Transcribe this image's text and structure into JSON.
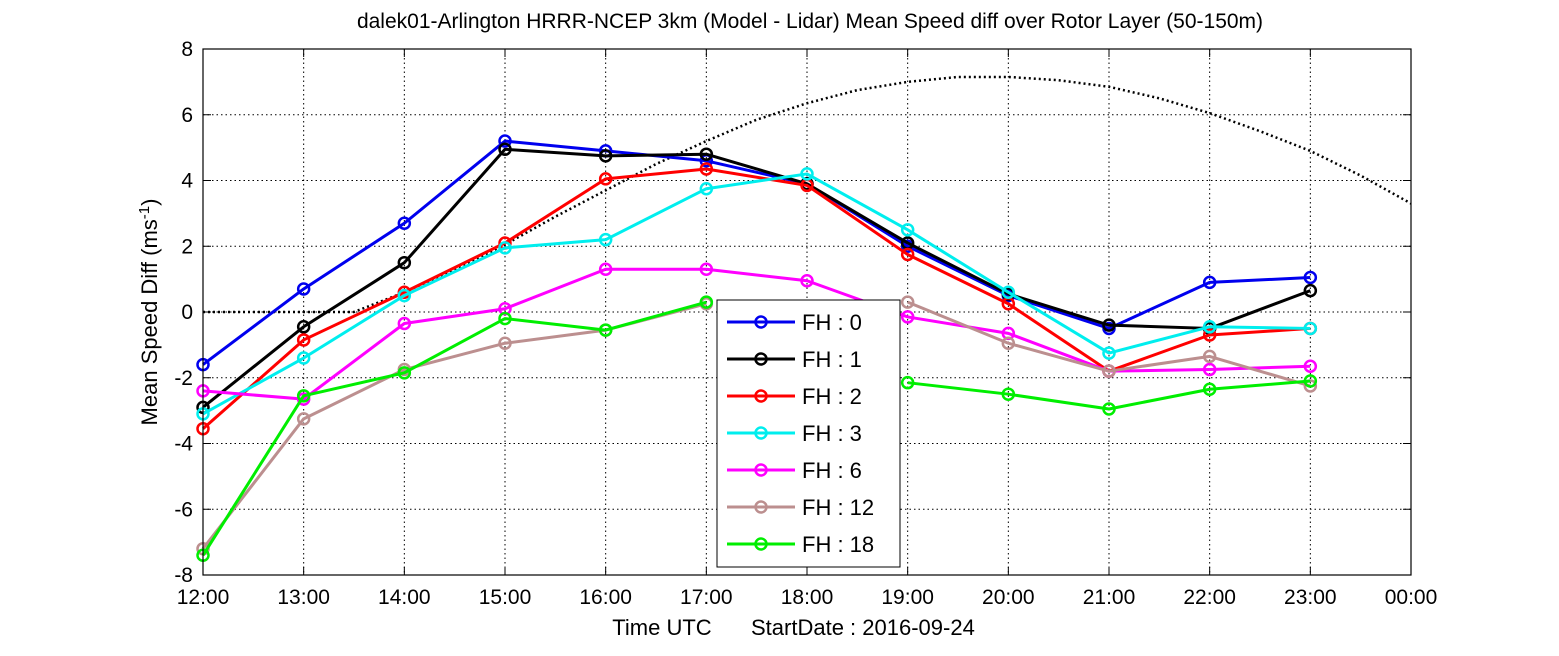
{
  "chart_data": {
    "type": "line",
    "title": "dalek01-Arlington HRRR-NCEP 3km (Model - Lidar) Mean Speed diff over Rotor Layer (50-150m)",
    "xlabel": "Time UTC",
    "start_date_label": "StartDate : 2016-09-24",
    "ylabel": "Mean Speed Diff (ms",
    "ylabel_sup": "-1",
    "ylabel_close": ")",
    "ylim": [
      -8,
      8
    ],
    "xlim": [
      12,
      24
    ],
    "grid": true,
    "legend_placement": "center-bottom",
    "x_ticks": [
      12,
      13,
      14,
      15,
      16,
      17,
      18,
      19,
      20,
      21,
      22,
      23,
      24
    ],
    "x_tick_labels": [
      "12:00",
      "13:00",
      "14:00",
      "15:00",
      "16:00",
      "17:00",
      "18:00",
      "19:00",
      "20:00",
      "21:00",
      "22:00",
      "23:00",
      "00:00"
    ],
    "y_ticks": [
      -8,
      -6,
      -4,
      -2,
      0,
      2,
      4,
      6,
      8
    ],
    "y_tick_labels": [
      "-8",
      "-6",
      "-4",
      "-2",
      "0",
      "2",
      "4",
      "6",
      "8"
    ],
    "x": [
      12,
      13,
      14,
      15,
      16,
      17,
      18,
      19,
      20,
      21,
      22,
      23
    ],
    "series": [
      {
        "name": "FH : 0",
        "color": "#0000ee",
        "values": [
          -1.6,
          0.7,
          2.7,
          5.2,
          4.9,
          4.6,
          3.9,
          2.0,
          0.5,
          -0.5,
          0.9,
          1.05
        ]
      },
      {
        "name": "FH : 1",
        "color": "#000000",
        "values": [
          -2.9,
          -0.45,
          1.5,
          4.95,
          4.75,
          4.8,
          3.9,
          2.1,
          0.55,
          -0.4,
          -0.5,
          0.65
        ]
      },
      {
        "name": "FH : 2",
        "color": "#ff0000",
        "values": [
          -3.55,
          -0.85,
          0.6,
          2.1,
          4.05,
          4.35,
          3.85,
          1.75,
          0.25,
          -1.8,
          -0.7,
          -0.5
        ]
      },
      {
        "name": "FH : 3",
        "color": "#00eeee",
        "values": [
          -3.1,
          -1.4,
          0.5,
          1.95,
          2.2,
          3.75,
          4.2,
          2.5,
          0.6,
          -1.25,
          -0.45,
          -0.5
        ]
      },
      {
        "name": "FH : 6",
        "color": "#ff00ff",
        "values": [
          -2.4,
          -2.65,
          -0.35,
          0.1,
          1.3,
          1.3,
          0.95,
          -0.15,
          -0.65,
          -1.8,
          -1.75,
          -1.65
        ]
      },
      {
        "name": "FH : 12",
        "color": "#bc8f8f",
        "values": [
          -7.2,
          -3.25,
          -1.75,
          -0.95,
          -0.55,
          0.25,
          null,
          0.3,
          -0.95,
          -1.8,
          -1.35,
          -2.25
        ]
      },
      {
        "name": "FH : 18",
        "color": "#00ee00",
        "values": [
          -7.4,
          -2.55,
          -1.85,
          -0.2,
          -0.55,
          0.3,
          null,
          -2.15,
          -2.5,
          -2.95,
          -2.35,
          -2.1
        ]
      }
    ],
    "reference_curve": {
      "style": "dotted",
      "color": "#000000",
      "x": [
        12,
        12.5,
        13,
        13.5,
        14,
        14.5,
        15,
        15.5,
        16,
        16.5,
        17,
        17.5,
        18,
        18.5,
        19,
        19.5,
        20,
        20.5,
        21,
        21.5,
        22,
        22.5,
        23,
        23.5,
        24
      ],
      "values": [
        0,
        0,
        0,
        0,
        0.6,
        1.3,
        2.05,
        2.9,
        3.7,
        4.5,
        5.2,
        5.85,
        6.35,
        6.75,
        7.0,
        7.15,
        7.15,
        7.05,
        6.85,
        6.5,
        6.05,
        5.5,
        4.9,
        4.15,
        3.3
      ]
    }
  }
}
